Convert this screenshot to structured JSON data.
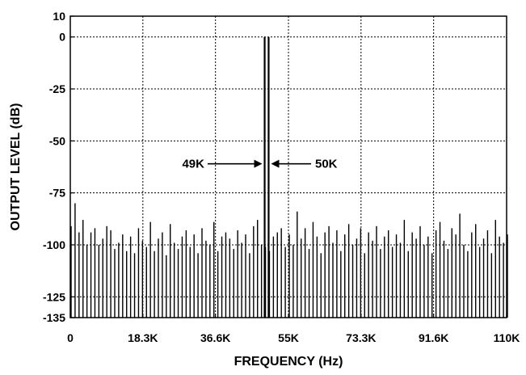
{
  "chart_data": {
    "type": "bar",
    "title": "",
    "xlabel": "FREQUENCY (Hz)",
    "ylabel": "OUTPUT LEVEL (dB)",
    "x_unit": "Hz",
    "y_unit": "dB",
    "xlim": [
      0,
      110000
    ],
    "ylim": [
      -135,
      10
    ],
    "floor": -135,
    "grid": true,
    "grid_style": "dotted",
    "x_ticks": [
      {
        "value": 0,
        "label": "0"
      },
      {
        "value": 18300,
        "label": "18.3K"
      },
      {
        "value": 36600,
        "label": "36.6K"
      },
      {
        "value": 55000,
        "label": "55K"
      },
      {
        "value": 73300,
        "label": "73.3K"
      },
      {
        "value": 91600,
        "label": "91.6K"
      },
      {
        "value": 110000,
        "label": "110K"
      }
    ],
    "y_ticks": [
      {
        "value": 10,
        "label": "10"
      },
      {
        "value": 0,
        "label": "0"
      },
      {
        "value": -25,
        "label": "-25"
      },
      {
        "value": -50,
        "label": "-50"
      },
      {
        "value": -75,
        "label": "-75"
      },
      {
        "value": -100,
        "label": "-100"
      },
      {
        "value": -125,
        "label": "-125"
      },
      {
        "value": -135,
        "label": "-135"
      }
    ],
    "tones": [
      {
        "x": 49000,
        "y": 0,
        "label": "49K"
      },
      {
        "x": 50000,
        "y": 0,
        "label": "50K"
      }
    ],
    "spur_spacing_hz": 1000,
    "spurs_dB": [
      -91,
      -80,
      -94,
      -88,
      -100,
      -94,
      -92,
      -100,
      -97,
      -91,
      -93,
      -102,
      -99,
      -95,
      -103,
      -96,
      -104,
      -92,
      -98,
      -101,
      -89,
      -103,
      -97,
      -94,
      -105,
      -90,
      -99,
      -102,
      -96,
      -93,
      -101,
      -95,
      -104,
      -92,
      -98,
      -100,
      -89,
      -103,
      -96,
      -94,
      -97,
      -102,
      -93,
      -99,
      -95,
      -104,
      -91,
      -88,
      -100,
      -101,
      -103,
      -96,
      -94,
      -92,
      -101,
      -95,
      -100,
      -84,
      -97,
      -92,
      -102,
      -89,
      -96,
      -104,
      -94,
      -91,
      -99,
      -93,
      -103,
      -95,
      -90,
      -100,
      -97,
      -92,
      -104,
      -94,
      -98,
      -91,
      -102,
      -96,
      -93,
      -101,
      -95,
      -99,
      -88,
      -103,
      -94,
      -97,
      -91,
      -100,
      -96,
      -104,
      -93,
      -89,
      -98,
      -102,
      -92,
      -95,
      -85,
      -100,
      -103,
      -94,
      -90,
      -101,
      -97,
      -93,
      -104,
      -88,
      -96,
      -99,
      -95
    ]
  }
}
